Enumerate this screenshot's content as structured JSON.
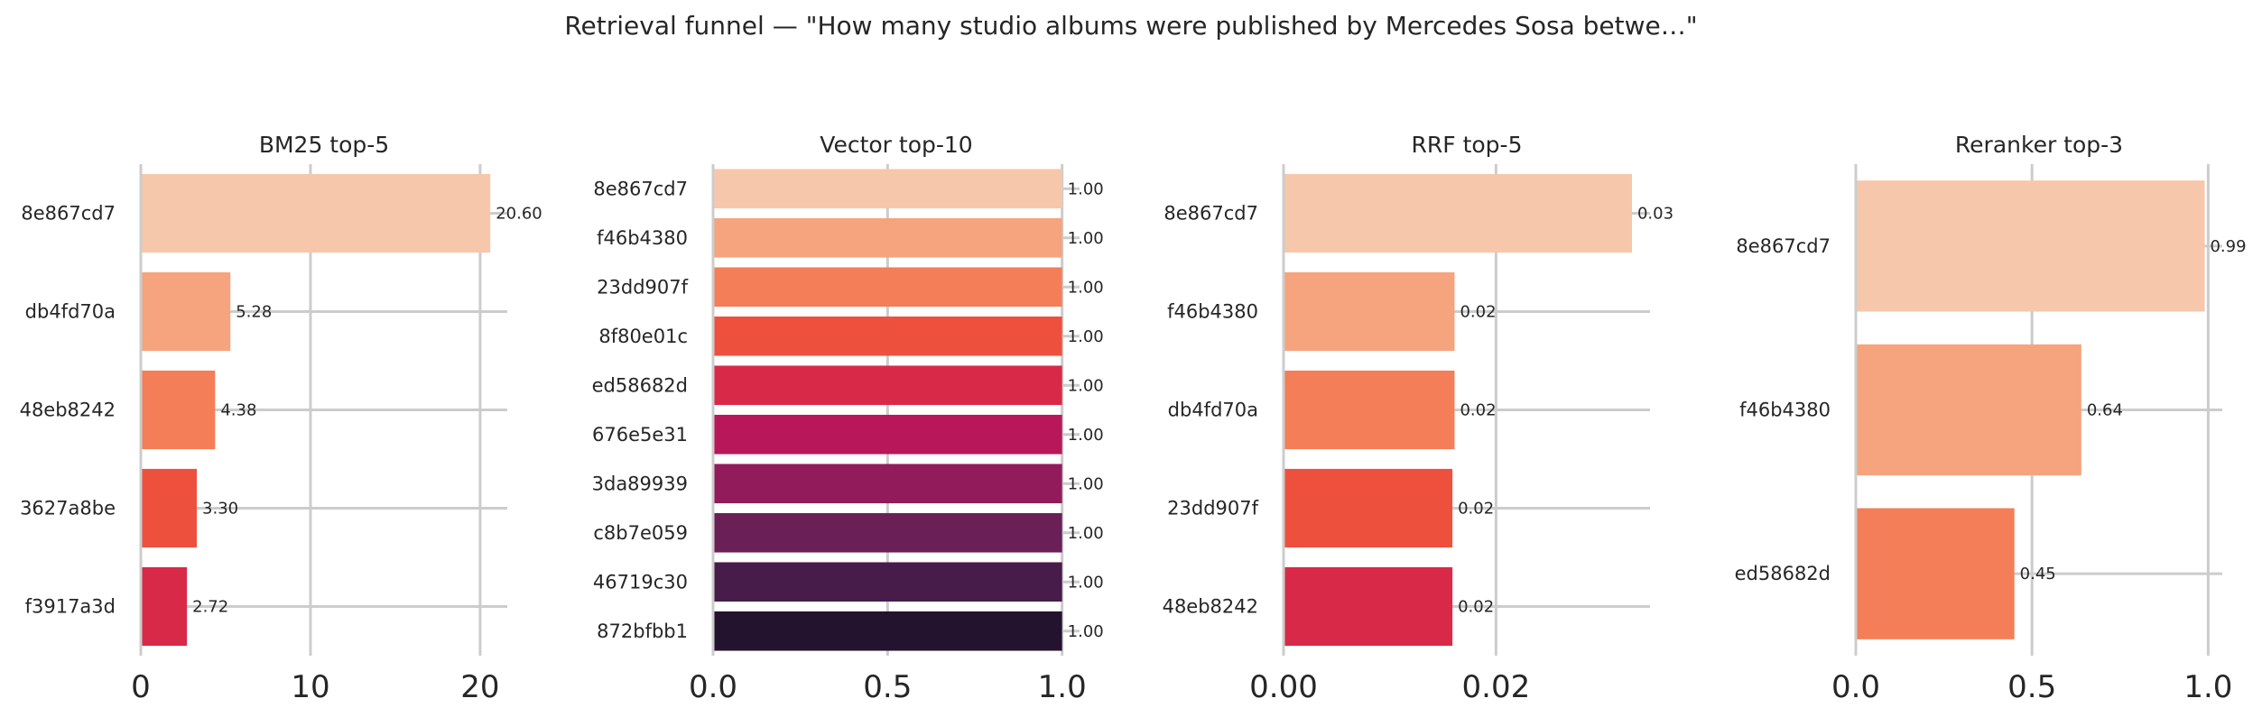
{
  "suptitle": "Retrieval funnel — \"How many studio albums were published by Mercedes Sosa betwe…\"",
  "colors": {
    "axis": "#cccccc",
    "grid": "#cccccc",
    "text": "#262626",
    "palette": [
      "#f6c7aa",
      "#f5a47d",
      "#f37e58",
      "#ed513e",
      "#d82a48",
      "#b8175a",
      "#921c5b",
      "#6a1f57",
      "#481c4a",
      "#23132f"
    ]
  },
  "chart_data": [
    {
      "type": "bar",
      "orientation": "horizontal",
      "title": "BM25 top-5",
      "categories": [
        "8e867cd7",
        "db4fd70a",
        "48eb8242",
        "3627a8be",
        "f3917a3d"
      ],
      "values": [
        20.6,
        5.28,
        4.38,
        3.3,
        2.72
      ],
      "value_labels": [
        "20.60",
        "5.28",
        "4.38",
        "3.30",
        "2.72"
      ],
      "xlim": [
        0,
        21.6
      ],
      "xticks": [
        0,
        10,
        20
      ],
      "xtick_labels": [
        "0",
        "10",
        "20"
      ],
      "grid": true
    },
    {
      "type": "bar",
      "orientation": "horizontal",
      "title": "Vector top-10",
      "categories": [
        "8e867cd7",
        "f46b4380",
        "23dd907f",
        "8f80e01c",
        "ed58682d",
        "676e5e31",
        "3da89939",
        "c8b7e059",
        "46719c30",
        "872bfbb1"
      ],
      "values": [
        1.0,
        1.0,
        1.0,
        1.0,
        1.0,
        1.0,
        1.0,
        1.0,
        1.0,
        1.0
      ],
      "value_labels": [
        "1.00",
        "1.00",
        "1.00",
        "1.00",
        "1.00",
        "1.00",
        "1.00",
        "1.00",
        "1.00",
        "1.00"
      ],
      "xlim": [
        0,
        1.05
      ],
      "xticks": [
        0,
        0.5,
        1.0
      ],
      "xtick_labels": [
        "0.0",
        "0.5",
        "1.0"
      ],
      "grid": true
    },
    {
      "type": "bar",
      "orientation": "horizontal",
      "title": "RRF top-5",
      "categories": [
        "8e867cd7",
        "f46b4380",
        "db4fd70a",
        "23dd907f",
        "48eb8242"
      ],
      "values": [
        0.0328,
        0.0161,
        0.0161,
        0.0159,
        0.0159
      ],
      "value_labels": [
        "0.03",
        "0.02",
        "0.02",
        "0.02",
        "0.02"
      ],
      "xlim": [
        0,
        0.0345
      ],
      "xticks": [
        0,
        0.02
      ],
      "xtick_labels": [
        "0.00",
        "0.02"
      ],
      "grid": true
    },
    {
      "type": "bar",
      "orientation": "horizontal",
      "title": "Reranker top-3",
      "categories": [
        "8e867cd7",
        "f46b4380",
        "ed58682d"
      ],
      "values": [
        0.99,
        0.64,
        0.45
      ],
      "value_labels": [
        "0.99",
        "0.64",
        "0.45"
      ],
      "xlim": [
        0,
        1.04
      ],
      "xticks": [
        0,
        0.5,
        1.0
      ],
      "xtick_labels": [
        "0.0",
        "0.5",
        "1.0"
      ],
      "grid": true
    }
  ]
}
